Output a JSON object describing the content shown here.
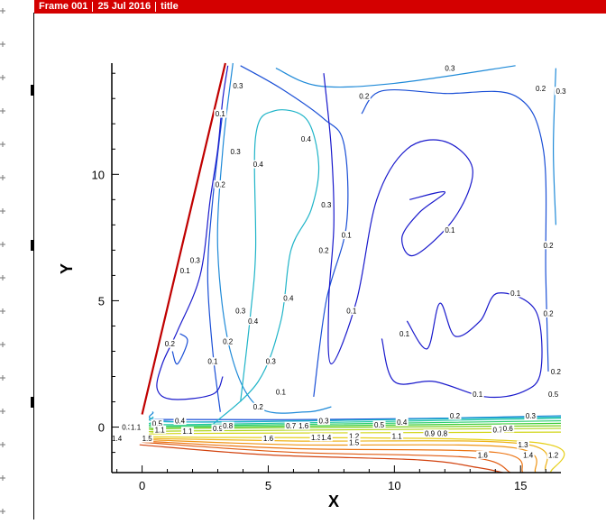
{
  "frame_header": {
    "frame": "Frame 001",
    "date": "25 Jul 2016",
    "title": "title"
  },
  "chart_data": {
    "type": "contour",
    "xlabel": "X",
    "ylabel": "Y",
    "xlim": [
      -1.2,
      16.6
    ],
    "ylim": [
      -1.8,
      14.4
    ],
    "x_ticks": [
      0,
      5,
      10,
      15
    ],
    "y_ticks": [
      0,
      5,
      10
    ],
    "levels": [
      0.1,
      0.2,
      0.3,
      0.4,
      0.5,
      0.6,
      0.7,
      0.8,
      0.9,
      1,
      1.1,
      1.2,
      1.3,
      1.4,
      1.5,
      1.6
    ],
    "colors": {
      "0.1": "#1a1acc",
      "0.2": "#1a4fd6",
      "0.3": "#1f8ad8",
      "0.4": "#1fb4c8",
      "0.5": "#22c8a0",
      "0.6": "#2acc6e",
      "0.7": "#3ecc3a",
      "0.8": "#7ccf1e",
      "0.9": "#aed41a",
      "1": "#d2d61a",
      "1.1": "#e6cf18",
      "1.2": "#eeb216",
      "1.3": "#ef9414",
      "1.4": "#ec7412",
      "1.5": "#e05a10",
      "1.6": "#d2420e",
      "boundary": "#c00000"
    },
    "boundary_line": [
      [
        0,
        0.5
      ],
      [
        3.3,
        14.4
      ]
    ],
    "contours": [
      {
        "level": 0.3,
        "points": [
          [
            5.3,
            14.2
          ],
          [
            7,
            13.5
          ],
          [
            10,
            13.6
          ],
          [
            14.8,
            14.3
          ]
        ]
      },
      {
        "level": 0.3,
        "points": [
          [
            3.6,
            14.4
          ],
          [
            3.2,
            11
          ],
          [
            3,
            7
          ],
          [
            3.5,
            3
          ],
          [
            4.6,
            0.8
          ],
          [
            6.5,
            0.6
          ],
          [
            7.5,
            0.8
          ]
        ]
      },
      {
        "level": 0.3,
        "points": [
          [
            16.4,
            14.2
          ],
          [
            16.3,
            11
          ],
          [
            16.4,
            8
          ]
        ]
      },
      {
        "level": 0.2,
        "points": [
          [
            3.9,
            14.3
          ],
          [
            5.5,
            13.4
          ],
          [
            7.2,
            12.2
          ],
          [
            8,
            11.2
          ],
          [
            8.1,
            8
          ],
          [
            7.3,
            5
          ],
          [
            6.8,
            1.2
          ]
        ]
      },
      {
        "level": 0.2,
        "points": [
          [
            8.7,
            12.4
          ],
          [
            9.5,
            13.3
          ],
          [
            12,
            13.2
          ],
          [
            14.8,
            13.1
          ],
          [
            15.9,
            11
          ],
          [
            16,
            6
          ],
          [
            16.1,
            2.2
          ]
        ]
      },
      {
        "level": 0.2,
        "points": [
          [
            3.2,
            12.5
          ],
          [
            2.8,
            9
          ],
          [
            2.6,
            6
          ],
          [
            2.8,
            3
          ],
          [
            3.1,
            0.6
          ]
        ]
      },
      {
        "level": 0.2,
        "points": [
          [
            1.5,
            3.7
          ],
          [
            1.8,
            3.4
          ],
          [
            1.4,
            2.5
          ],
          [
            1.2,
            3
          ]
        ]
      },
      {
        "level": 0.2,
        "points": [
          [
            0.5,
            0.3
          ],
          [
            7,
            0.3
          ],
          [
            15.6,
            0.4
          ]
        ]
      },
      {
        "level": 0.1,
        "points": [
          [
            3.4,
            14.3
          ],
          [
            3.2,
            13
          ],
          [
            3,
            11
          ],
          [
            2.7,
            9
          ],
          [
            2.3,
            6
          ],
          [
            1.4,
            3.8
          ],
          [
            0.8,
            2.5
          ],
          [
            0.6,
            1.5
          ],
          [
            1.2,
            1.1
          ],
          [
            2.8,
            1.3
          ],
          [
            3.2,
            2
          ]
        ]
      },
      {
        "level": 0.1,
        "points": [
          [
            7.2,
            14
          ],
          [
            7.5,
            11
          ],
          [
            7.6,
            8
          ],
          [
            7.4,
            5
          ],
          [
            7.5,
            2.5
          ],
          [
            8.5,
            5
          ],
          [
            9.3,
            9
          ],
          [
            10.5,
            11
          ],
          [
            12,
            11.3
          ],
          [
            13.1,
            10.2
          ],
          [
            12.4,
            8.3
          ],
          [
            10.8,
            6.8
          ],
          [
            10.3,
            7.5
          ],
          [
            11,
            8.5
          ],
          [
            12,
            9.3
          ],
          [
            10.6,
            9
          ]
        ]
      },
      {
        "level": 0.1,
        "points": [
          [
            9.5,
            3.5
          ],
          [
            10,
            1.8
          ],
          [
            11.6,
            1.8
          ],
          [
            13.6,
            1.2
          ],
          [
            15.1,
            1.4
          ],
          [
            15.8,
            2.2
          ],
          [
            15.6,
            4.6
          ],
          [
            14.1,
            5.3
          ],
          [
            13.4,
            4.2
          ],
          [
            12.4,
            3.6
          ],
          [
            11.8,
            4.9
          ],
          [
            11.3,
            3.1
          ],
          [
            10.5,
            4.2
          ]
        ]
      },
      {
        "level": 0.4,
        "points": [
          [
            2.8,
            0.1
          ],
          [
            4.6,
            1.8
          ],
          [
            5.5,
            4.2
          ],
          [
            5.9,
            7
          ],
          [
            6.7,
            8.6
          ],
          [
            7,
            10.4
          ],
          [
            6.5,
            12.2
          ],
          [
            5.2,
            12.5
          ],
          [
            4.5,
            11.5
          ],
          [
            4.5,
            7
          ],
          [
            4.3,
            4.5
          ],
          [
            3.9,
            1
          ]
        ]
      },
      {
        "level": 0.3,
        "points": [
          [
            0.4,
            0.6
          ],
          [
            2,
            0.2
          ],
          [
            16.6,
            0.45
          ]
        ]
      },
      {
        "level": 0.4,
        "points": [
          [
            0.4,
            0.4
          ],
          [
            2,
            0.2
          ],
          [
            16.6,
            0.4
          ]
        ]
      },
      {
        "level": 0.5,
        "points": [
          [
            0.4,
            0.2
          ],
          [
            2,
            0.1
          ],
          [
            16.6,
            0.35
          ]
        ]
      },
      {
        "level": 0.6,
        "points": [
          [
            0.4,
            0.1
          ],
          [
            2,
            0.05
          ],
          [
            16.6,
            0.25
          ]
        ]
      },
      {
        "level": 0.7,
        "points": [
          [
            0.4,
            0
          ],
          [
            2,
            0
          ],
          [
            16.6,
            0.15
          ]
        ]
      },
      {
        "level": 0.8,
        "points": [
          [
            0.4,
            -0.1
          ],
          [
            2,
            -0.05
          ],
          [
            16.6,
            0.05
          ]
        ]
      },
      {
        "level": 0.9,
        "points": [
          [
            0.4,
            -0.2
          ],
          [
            2,
            -0.15
          ],
          [
            16.6,
            -0.05
          ]
        ]
      },
      {
        "level": 1,
        "points": [
          [
            0.4,
            -0.3
          ],
          [
            2,
            -0.25
          ],
          [
            16.6,
            -0.2
          ]
        ]
      },
      {
        "level": 1.1,
        "points": [
          [
            0.2,
            -0.4
          ],
          [
            2,
            -0.4
          ],
          [
            15.5,
            -0.6
          ],
          [
            16.2,
            -1.8
          ]
        ]
      },
      {
        "level": 1.2,
        "points": [
          [
            0.2,
            -0.45
          ],
          [
            6,
            -0.55
          ],
          [
            15,
            -0.65
          ],
          [
            16,
            -1.7
          ]
        ]
      },
      {
        "level": 1.3,
        "points": [
          [
            0.2,
            -0.5
          ],
          [
            6,
            -0.7
          ],
          [
            14.6,
            -0.8
          ],
          [
            15.6,
            -1.8
          ]
        ]
      },
      {
        "level": 1.4,
        "points": [
          [
            0,
            -0.55
          ],
          [
            6,
            -0.85
          ],
          [
            14,
            -1
          ],
          [
            15.1,
            -1.8
          ]
        ]
      },
      {
        "level": 1.5,
        "points": [
          [
            0,
            -0.6
          ],
          [
            6,
            -1
          ],
          [
            13,
            -1.2
          ],
          [
            14.6,
            -1.8
          ]
        ]
      },
      {
        "level": 1.6,
        "points": [
          [
            -0.1,
            -0.7
          ],
          [
            5,
            -1.1
          ],
          [
            11,
            -1.3
          ],
          [
            13.3,
            -1.6
          ],
          [
            14.3,
            -1.8
          ]
        ]
      }
    ],
    "contour_labels": [
      {
        "text": "0.3",
        "x": 12.2,
        "y": 14.2,
        "level": 0.3
      },
      {
        "text": "0.3",
        "x": 3.8,
        "y": 13.5,
        "level": 0.3
      },
      {
        "text": "0.2",
        "x": 8.8,
        "y": 13.1,
        "level": 0.2
      },
      {
        "text": "0.1",
        "x": 3.1,
        "y": 12.4,
        "level": 0.1
      },
      {
        "text": "0.4",
        "x": 6.5,
        "y": 11.4,
        "level": 0.4
      },
      {
        "text": "0.3",
        "x": 3.7,
        "y": 10.9,
        "level": 0.3
      },
      {
        "text": "0.4",
        "x": 4.6,
        "y": 10.4,
        "level": 0.4
      },
      {
        "text": "0.2",
        "x": 3.1,
        "y": 9.6,
        "level": 0.2
      },
      {
        "text": "0.3",
        "x": 7.3,
        "y": 8.8,
        "level": 0.3
      },
      {
        "text": "0.1",
        "x": 8.1,
        "y": 7.6,
        "level": 0.1
      },
      {
        "text": "0.1",
        "x": 12.2,
        "y": 7.8,
        "level": 0.1
      },
      {
        "text": "0.2",
        "x": 7.2,
        "y": 7.0,
        "level": 0.2
      },
      {
        "text": "0.2",
        "x": 16.1,
        "y": 7.2,
        "level": 0.2
      },
      {
        "text": "0.3",
        "x": 16.6,
        "y": 13.3,
        "level": 0.3
      },
      {
        "text": "0.2",
        "x": 15.8,
        "y": 13.4,
        "level": 0.2
      },
      {
        "text": "0.1",
        "x": 1.7,
        "y": 6.2,
        "level": 0.1
      },
      {
        "text": "0.3",
        "x": 2.1,
        "y": 6.6,
        "level": 0.3
      },
      {
        "text": "0.1",
        "x": 14.8,
        "y": 5.3,
        "level": 0.1
      },
      {
        "text": "0.2",
        "x": 16.1,
        "y": 4.5,
        "level": 0.2
      },
      {
        "text": "0.4",
        "x": 5.8,
        "y": 5.1,
        "level": 0.4
      },
      {
        "text": "0.3",
        "x": 3.9,
        "y": 4.6,
        "level": 0.3
      },
      {
        "text": "0.4",
        "x": 4.4,
        "y": 4.2,
        "level": 0.4
      },
      {
        "text": "0.1",
        "x": 8.3,
        "y": 4.6,
        "level": 0.1
      },
      {
        "text": "0.2",
        "x": 3.4,
        "y": 3.4,
        "level": 0.2
      },
      {
        "text": "0.2",
        "x": 1.1,
        "y": 3.3,
        "level": 0.2
      },
      {
        "text": "0.1",
        "x": 10.4,
        "y": 3.7,
        "level": 0.1
      },
      {
        "text": "0.1",
        "x": 2.8,
        "y": 2.6,
        "level": 0.1
      },
      {
        "text": "0.3",
        "x": 5.1,
        "y": 2.6,
        "level": 0.3
      },
      {
        "text": "0.1",
        "x": 5.5,
        "y": 1.4,
        "level": 0.1
      },
      {
        "text": "0.1",
        "x": 13.3,
        "y": 1.3,
        "level": 0.1
      },
      {
        "text": "0.2",
        "x": 16.4,
        "y": 2.2,
        "level": 0.2
      },
      {
        "text": "0.2",
        "x": 4.6,
        "y": 0.8,
        "level": 0.2
      },
      {
        "text": "0.5",
        "x": 16.3,
        "y": 1.3,
        "level": 0.5
      },
      {
        "text": "0.4",
        "x": 1.5,
        "y": 0.25,
        "level": 0.4
      },
      {
        "text": "0.5",
        "x": 0.6,
        "y": 0.15,
        "level": 0.5
      },
      {
        "text": "0.3",
        "x": 7.2,
        "y": 0.25,
        "level": 0.3
      },
      {
        "text": "0.2",
        "x": 12.4,
        "y": 0.45,
        "level": 0.2
      },
      {
        "text": "0.3",
        "x": 15.4,
        "y": 0.45,
        "level": 0.3
      },
      {
        "text": "0.5",
        "x": 9.4,
        "y": 0.1,
        "level": 0.5
      },
      {
        "text": "0.4",
        "x": 10.3,
        "y": 0.2,
        "level": 0.4
      },
      {
        "text": "0.3",
        "x": -0.6,
        "y": 0.0,
        "level": 0.3
      },
      {
        "text": "1.1",
        "x": -0.25,
        "y": 0.0,
        "level": 1.1
      },
      {
        "text": "1.1",
        "x": 0.7,
        "y": -0.1,
        "level": 1.1
      },
      {
        "text": "1.1",
        "x": 1.8,
        "y": -0.15,
        "level": 1.1
      },
      {
        "text": "0.9",
        "x": 3.0,
        "y": -0.05,
        "level": 0.9
      },
      {
        "text": "0.8",
        "x": 3.4,
        "y": 0.05,
        "level": 0.8
      },
      {
        "text": "0.7",
        "x": 5.9,
        "y": 0.05,
        "level": 0.7
      },
      {
        "text": "1.6",
        "x": 6.4,
        "y": 0.05,
        "level": 1.6
      },
      {
        "text": "1.1",
        "x": 10.1,
        "y": -0.35,
        "level": 1.1
      },
      {
        "text": "0.9",
        "x": 11.4,
        "y": -0.25,
        "level": 0.9
      },
      {
        "text": "0.8",
        "x": 11.9,
        "y": -0.25,
        "level": 0.8
      },
      {
        "text": "0.7",
        "x": 14.1,
        "y": -0.1,
        "level": 0.7
      },
      {
        "text": "0.6",
        "x": 14.5,
        "y": -0.05,
        "level": 0.6
      },
      {
        "text": "1.4",
        "x": -1.0,
        "y": -0.45,
        "level": 1.4
      },
      {
        "text": "1.5",
        "x": 0.2,
        "y": -0.45,
        "level": 1.5
      },
      {
        "text": "1.6",
        "x": 5.0,
        "y": -0.45,
        "level": 1.6
      },
      {
        "text": "1.3",
        "x": 6.9,
        "y": -0.4,
        "level": 1.3
      },
      {
        "text": "1.4",
        "x": 7.3,
        "y": -0.4,
        "level": 1.4
      },
      {
        "text": "1.2",
        "x": 8.4,
        "y": -0.35,
        "level": 1.2
      },
      {
        "text": "1.5",
        "x": 8.4,
        "y": -0.6,
        "level": 1.5
      },
      {
        "text": "1.3",
        "x": 15.1,
        "y": -0.7,
        "level": 1.3
      },
      {
        "text": "1.4",
        "x": 15.3,
        "y": -1.1,
        "level": 1.4
      },
      {
        "text": "1.2",
        "x": 16.3,
        "y": -1.1,
        "level": 1.2
      },
      {
        "text": "1.6",
        "x": 13.5,
        "y": -1.1,
        "level": 1.6
      }
    ]
  }
}
